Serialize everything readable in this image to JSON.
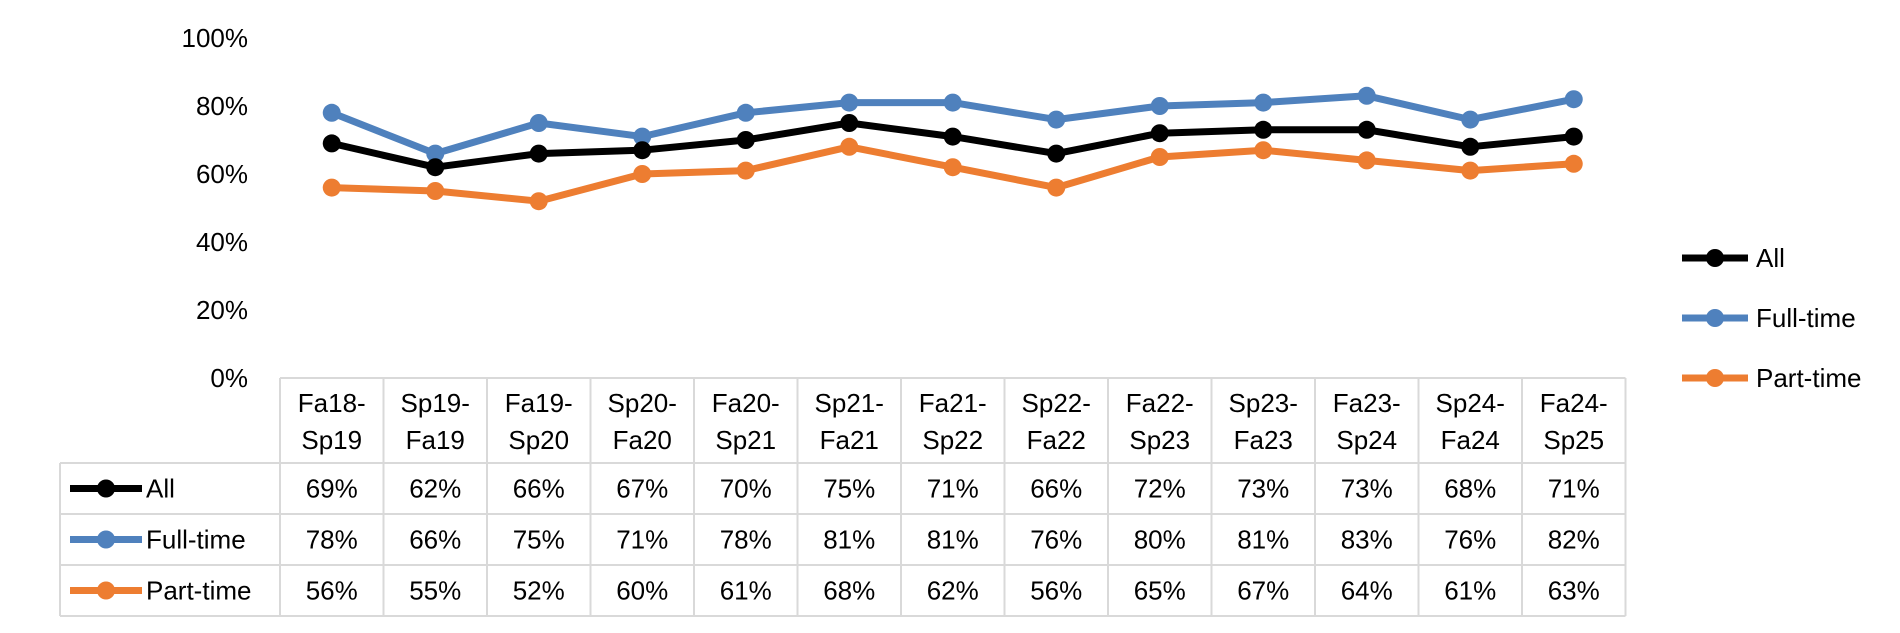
{
  "chart_data": {
    "type": "line",
    "title": "",
    "xlabel": "",
    "ylabel": "",
    "ylim": [
      0,
      1
    ],
    "y_ticks": [
      "0%",
      "20%",
      "40%",
      "60%",
      "80%",
      "100%"
    ],
    "categories": [
      [
        "Fa18-",
        "Sp19"
      ],
      [
        "Sp19-",
        "Fa19"
      ],
      [
        "Fa19-",
        "Sp20"
      ],
      [
        "Sp20-",
        "Fa20"
      ],
      [
        "Fa20-",
        "Sp21"
      ],
      [
        "Sp21-",
        "Fa21"
      ],
      [
        "Fa21-",
        "Sp22"
      ],
      [
        "Sp22-",
        "Fa22"
      ],
      [
        "Fa22-",
        "Sp23"
      ],
      [
        "Sp23-",
        "Fa23"
      ],
      [
        "Fa23-",
        "Sp24"
      ],
      [
        "Sp24-",
        "Fa24"
      ],
      [
        "Fa24-",
        "Sp25"
      ]
    ],
    "series": [
      {
        "name": "All",
        "color": "#000000",
        "values": [
          0.69,
          0.62,
          0.66,
          0.67,
          0.7,
          0.75,
          0.71,
          0.66,
          0.72,
          0.73,
          0.73,
          0.68,
          0.71
        ],
        "labels": [
          "69%",
          "62%",
          "66%",
          "67%",
          "70%",
          "75%",
          "71%",
          "66%",
          "72%",
          "73%",
          "73%",
          "68%",
          "71%"
        ]
      },
      {
        "name": "Full-time",
        "color": "#4F81BD",
        "values": [
          0.78,
          0.66,
          0.75,
          0.71,
          0.78,
          0.81,
          0.81,
          0.76,
          0.8,
          0.81,
          0.83,
          0.76,
          0.82
        ],
        "labels": [
          "78%",
          "66%",
          "75%",
          "71%",
          "78%",
          "81%",
          "81%",
          "76%",
          "80%",
          "81%",
          "83%",
          "76%",
          "82%"
        ]
      },
      {
        "name": "Part-time",
        "color": "#ED7D31",
        "values": [
          0.56,
          0.55,
          0.52,
          0.6,
          0.61,
          0.68,
          0.62,
          0.56,
          0.65,
          0.67,
          0.64,
          0.61,
          0.63
        ],
        "labels": [
          "56%",
          "55%",
          "52%",
          "60%",
          "61%",
          "68%",
          "62%",
          "56%",
          "65%",
          "67%",
          "64%",
          "61%",
          "63%"
        ]
      }
    ],
    "grid": false,
    "legend_position": "right",
    "data_table": true
  }
}
